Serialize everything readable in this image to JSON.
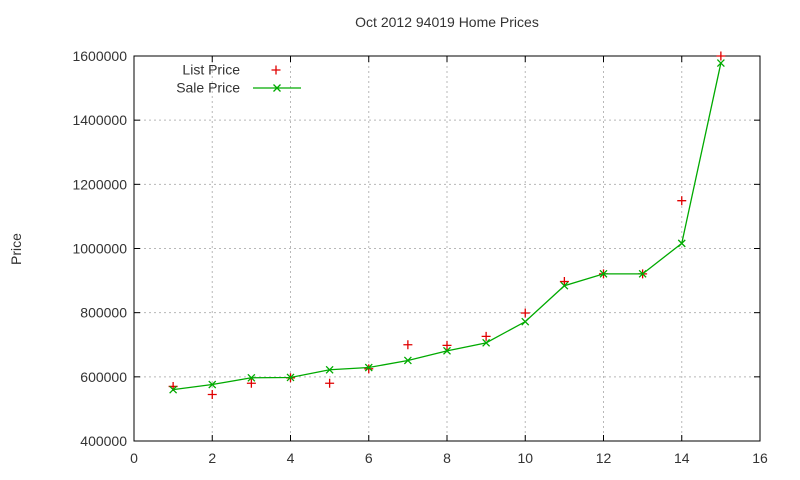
{
  "chart_data": {
    "type": "line",
    "title": "Oct 2012 94019 Home Prices",
    "ylabel": "Price",
    "xlabel": "",
    "xlim": [
      0,
      16
    ],
    "ylim": [
      400000,
      1600000
    ],
    "xticks": [
      0,
      2,
      4,
      6,
      8,
      10,
      12,
      14,
      16
    ],
    "yticks": [
      400000,
      600000,
      800000,
      1000000,
      1200000,
      1400000,
      1600000
    ],
    "grid": true,
    "legend_position": "top-left-inside",
    "x": [
      1,
      2,
      3,
      4,
      5,
      6,
      7,
      8,
      9,
      10,
      11,
      12,
      13,
      14,
      15
    ],
    "series": [
      {
        "name": "List Price",
        "style": "points",
        "marker": "plus",
        "color": "#e00000",
        "values": [
          570000,
          545000,
          580000,
          597000,
          580000,
          625000,
          700000,
          698000,
          726000,
          799000,
          897000,
          921000,
          921000,
          1149000,
          1600000
        ]
      },
      {
        "name": "Sale Price",
        "style": "linespoints",
        "marker": "x",
        "color": "#00aa00",
        "values": [
          560000,
          576000,
          597000,
          598000,
          622000,
          629000,
          651000,
          681000,
          706000,
          772000,
          884000,
          921000,
          921000,
          1016000,
          1578000
        ]
      }
    ],
    "colors": {
      "text": "#333333",
      "grid": "#b8b8b8",
      "border": "#000000"
    }
  }
}
